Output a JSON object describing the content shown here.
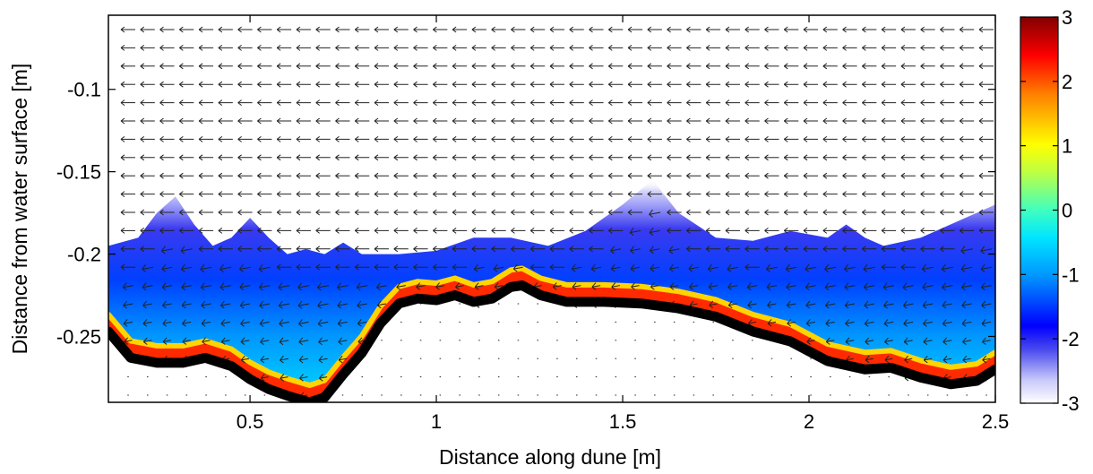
{
  "chart_data": {
    "type": "heatmap",
    "title": "",
    "xlabel": "Distance along dune [m]",
    "ylabel": "Distance from water surface [m]",
    "xlim": [
      0.12,
      2.5
    ],
    "ylim": [
      -0.29,
      -0.055
    ],
    "xticks": [
      0.5,
      1,
      1.5,
      2,
      2.5
    ],
    "xtick_labels": [
      "0.5",
      "1",
      "1.5",
      "2",
      "2.5"
    ],
    "yticks": [
      -0.1,
      -0.15,
      -0.2,
      -0.25
    ],
    "ytick_labels": [
      "-0.1",
      "-0.15",
      "-0.2",
      "-0.25"
    ],
    "colorbar": {
      "range": [
        -3,
        3
      ],
      "ticks": [
        3,
        2,
        1,
        0,
        -1,
        -2,
        -3
      ],
      "tick_labels": [
        "3",
        "2",
        "1",
        "0",
        "-1",
        "-2",
        "-3"
      ],
      "colormap": "jet (white at low end)"
    },
    "bed_profile": {
      "x": [
        0.12,
        0.18,
        0.25,
        0.32,
        0.38,
        0.45,
        0.5,
        0.55,
        0.6,
        0.66,
        0.7,
        0.75,
        0.8,
        0.85,
        0.9,
        0.95,
        1.0,
        1.05,
        1.1,
        1.15,
        1.2,
        1.23,
        1.28,
        1.35,
        1.45,
        1.55,
        1.65,
        1.75,
        1.85,
        1.95,
        2.05,
        2.15,
        2.22,
        2.3,
        2.38,
        2.45,
        2.5
      ],
      "y": [
        -0.247,
        -0.263,
        -0.266,
        -0.266,
        -0.263,
        -0.268,
        -0.276,
        -0.282,
        -0.286,
        -0.29,
        -0.287,
        -0.273,
        -0.26,
        -0.242,
        -0.23,
        -0.227,
        -0.228,
        -0.225,
        -0.229,
        -0.227,
        -0.22,
        -0.219,
        -0.225,
        -0.229,
        -0.229,
        -0.23,
        -0.233,
        -0.238,
        -0.247,
        -0.253,
        -0.265,
        -0.27,
        -0.269,
        -0.275,
        -0.279,
        -0.277,
        -0.27
      ]
    },
    "shear_layer_top": {
      "x": [
        0.12,
        0.2,
        0.25,
        0.3,
        0.35,
        0.4,
        0.45,
        0.5,
        0.55,
        0.6,
        0.65,
        0.7,
        0.75,
        0.8,
        0.9,
        1.0,
        1.1,
        1.2,
        1.3,
        1.4,
        1.5,
        1.58,
        1.65,
        1.75,
        1.85,
        1.95,
        2.05,
        2.1,
        2.15,
        2.2,
        2.3,
        2.4,
        2.5
      ],
      "y": [
        -0.195,
        -0.19,
        -0.175,
        -0.165,
        -0.182,
        -0.195,
        -0.19,
        -0.178,
        -0.19,
        -0.2,
        -0.197,
        -0.2,
        -0.193,
        -0.2,
        -0.2,
        -0.198,
        -0.19,
        -0.19,
        -0.195,
        -0.186,
        -0.17,
        -0.155,
        -0.175,
        -0.19,
        -0.192,
        -0.186,
        -0.19,
        -0.182,
        -0.19,
        -0.195,
        -0.19,
        -0.18,
        -0.17
      ]
    },
    "vector_field": {
      "direction": "negative x (leftward)",
      "rows": 21,
      "columns": 45
    }
  }
}
